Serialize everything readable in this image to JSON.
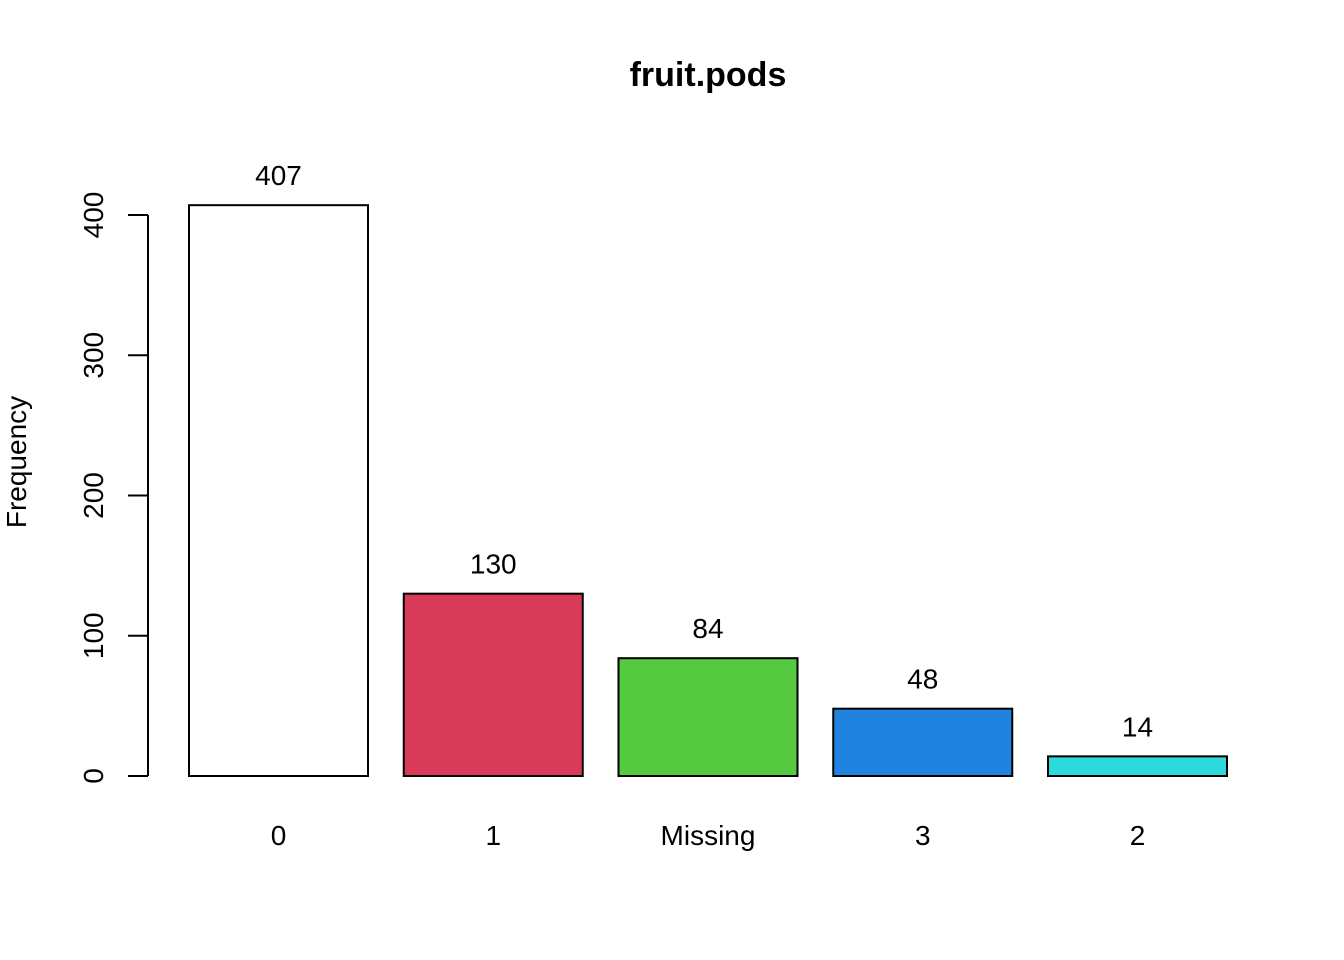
{
  "chart_data": {
    "type": "bar",
    "title": "fruit.pods",
    "xlabel": "",
    "ylabel": "Frequency",
    "categories": [
      "0",
      "1",
      "Missing",
      "3",
      "2"
    ],
    "values": [
      407,
      130,
      84,
      48,
      14
    ],
    "colors": [
      "#FFFFFF",
      "#D83B5A",
      "#55C940",
      "#2083E0",
      "#2ED9DE"
    ],
    "ylim": [
      0,
      400
    ],
    "yticks": [
      0,
      100,
      200,
      300,
      400
    ],
    "grid": false,
    "legend": "none"
  }
}
